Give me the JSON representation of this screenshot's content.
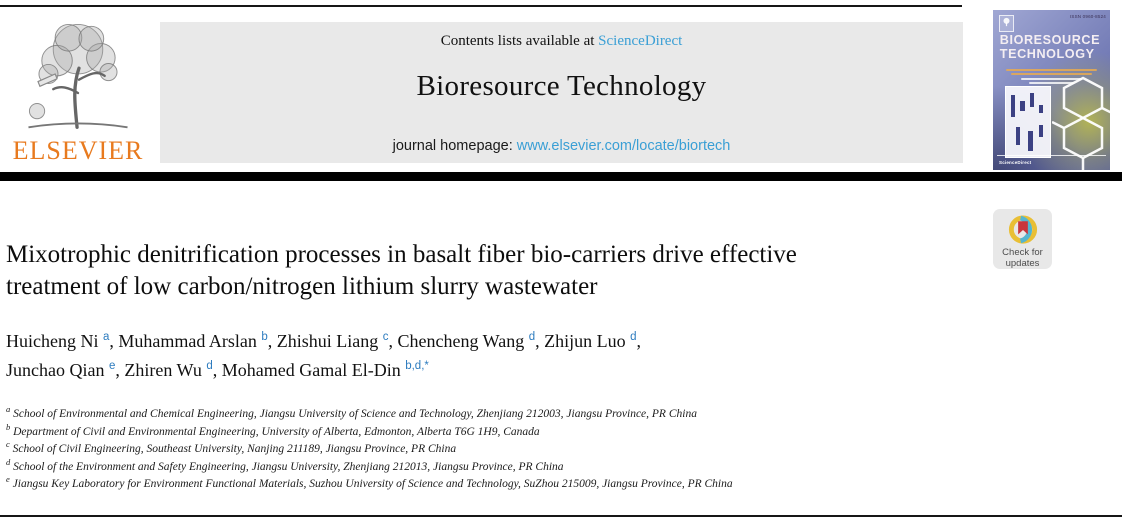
{
  "colors": {
    "link_blue": "#3a9fd5",
    "sup_blue": "#2d7cbf",
    "elsevier_orange": "#e87a1e",
    "header_gray": "#e9e9e9",
    "badge_yellow": "#e9bf35",
    "badge_teal": "#53b5d0",
    "badge_red": "#c9353c"
  },
  "header": {
    "contents_prefix": "Contents lists available at",
    "contents_link": "ScienceDirect",
    "journal_title": "Bioresource Technology",
    "homepage_prefix": "journal homepage:",
    "homepage_url": "www.elsevier.com/locate/biortech",
    "elsevier_wordmark": "ELSEVIER"
  },
  "cover": {
    "issn": "ISSN 0960-8524",
    "title_line1": "BIORESOURCE",
    "title_line2": "TECHNOLOGY",
    "sciencedirect_label": "ScienceDirect"
  },
  "badge": {
    "line1": "Check for",
    "line2": "updates"
  },
  "article": {
    "title": "Mixotrophic denitrification processes in basalt fiber bio-carriers drive effective treatment of low carbon/nitrogen lithium slurry wastewater",
    "authors": [
      {
        "name": "Huicheng Ni",
        "sup": "a"
      },
      {
        "name": "Muhammad Arslan",
        "sup": "b"
      },
      {
        "name": "Zhishui Liang",
        "sup": "c"
      },
      {
        "name": "Chencheng Wang",
        "sup": "d"
      },
      {
        "name": "Zhijun Luo",
        "sup": "d",
        "break_after": true
      },
      {
        "name": "Junchao Qian",
        "sup": "e"
      },
      {
        "name": "Zhiren Wu",
        "sup": "d"
      },
      {
        "name": "Mohamed Gamal El-Din",
        "sup": "b,d,*"
      }
    ],
    "affiliations": [
      {
        "sup": "a",
        "text": "School of Environmental and Chemical Engineering, Jiangsu University of Science and Technology, Zhenjiang 212003, Jiangsu Province, PR China"
      },
      {
        "sup": "b",
        "text": "Department of Civil and Environmental Engineering, University of Alberta, Edmonton, Alberta T6G 1H9, Canada"
      },
      {
        "sup": "c",
        "text": "School of Civil Engineering, Southeast University, Nanjing 211189, Jiangsu Province, PR China"
      },
      {
        "sup": "d",
        "text": "School of the Environment and Safety Engineering, Jiangsu University, Zhenjiang 212013, Jiangsu Province, PR China"
      },
      {
        "sup": "e",
        "text": "Jiangsu Key Laboratory for Environment Functional Materials, Suzhou University of Science and Technology, SuZhou 215009, Jiangsu Province, PR China"
      }
    ]
  }
}
